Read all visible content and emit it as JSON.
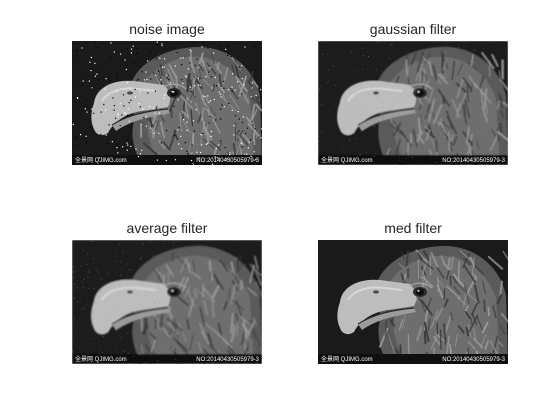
{
  "figure": {
    "panels": [
      {
        "id": "noise",
        "title": "noise image",
        "filter": "none",
        "noise": "salt-and-pepper",
        "watermark_left": "全景网 QJIMG.com",
        "watermark_right": "NO:20140430505979-3"
      },
      {
        "id": "gaussian",
        "title": "gaussian filter",
        "filter": "gaussian",
        "noise": "fine",
        "watermark_left": "全景网 QJIMG.com",
        "watermark_right": "NO:20140430505979-3"
      },
      {
        "id": "average",
        "title": "average filter",
        "filter": "average",
        "noise": "fine",
        "watermark_left": "全景网 QJIMG.com",
        "watermark_right": "NO:20140430505979-3"
      },
      {
        "id": "median",
        "title": "med filter",
        "filter": "median",
        "noise": "none",
        "watermark_left": "全景网 QJIMG.com",
        "watermark_right": "NO:20140430505979-3"
      }
    ],
    "colors": {
      "background": "#ffffff",
      "title": "#262626",
      "image_dark": "#1a1a1a",
      "beak": "#bdbdbd",
      "feather_light": "#9a9a9a",
      "feather_dark": "#3a3a3a"
    }
  }
}
